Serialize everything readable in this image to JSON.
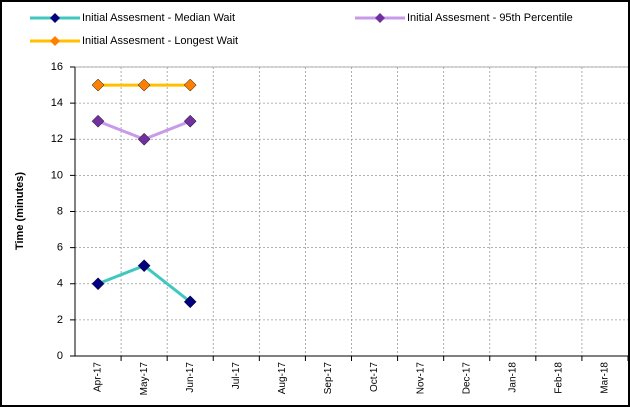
{
  "chart_data": {
    "type": "line",
    "y_label": "Time (minutes)",
    "categories": [
      "Apr-17",
      "May-17",
      "Jun-17",
      "Jul-17",
      "Aug-17",
      "Sep-17",
      "Oct-17",
      "Nov-17",
      "Dec-17",
      "Jan-18",
      "Feb-18",
      "Mar-18"
    ],
    "series": [
      {
        "name": "Initial Assesment - Median Wait",
        "color": "#40c8c0",
        "marker_color": "#000080",
        "values": [
          4,
          5,
          3,
          null,
          null,
          null,
          null,
          null,
          null,
          null,
          null,
          null
        ]
      },
      {
        "name": "Initial Assesment - 95th Percentile",
        "color": "#c89be8",
        "marker_color": "#7030a0",
        "values": [
          13,
          12,
          13,
          null,
          null,
          null,
          null,
          null,
          null,
          null,
          null,
          null
        ]
      },
      {
        "name": "Initial Assesment - Longest Wait",
        "color": "#ffc000",
        "marker_color": "#ff8000",
        "values": [
          15,
          15,
          15,
          null,
          null,
          null,
          null,
          null,
          null,
          null,
          null,
          null
        ]
      }
    ],
    "ylim": [
      0,
      16
    ],
    "yticks": [
      0,
      2,
      4,
      6,
      8,
      10,
      12,
      14,
      16
    ],
    "grid": true
  }
}
